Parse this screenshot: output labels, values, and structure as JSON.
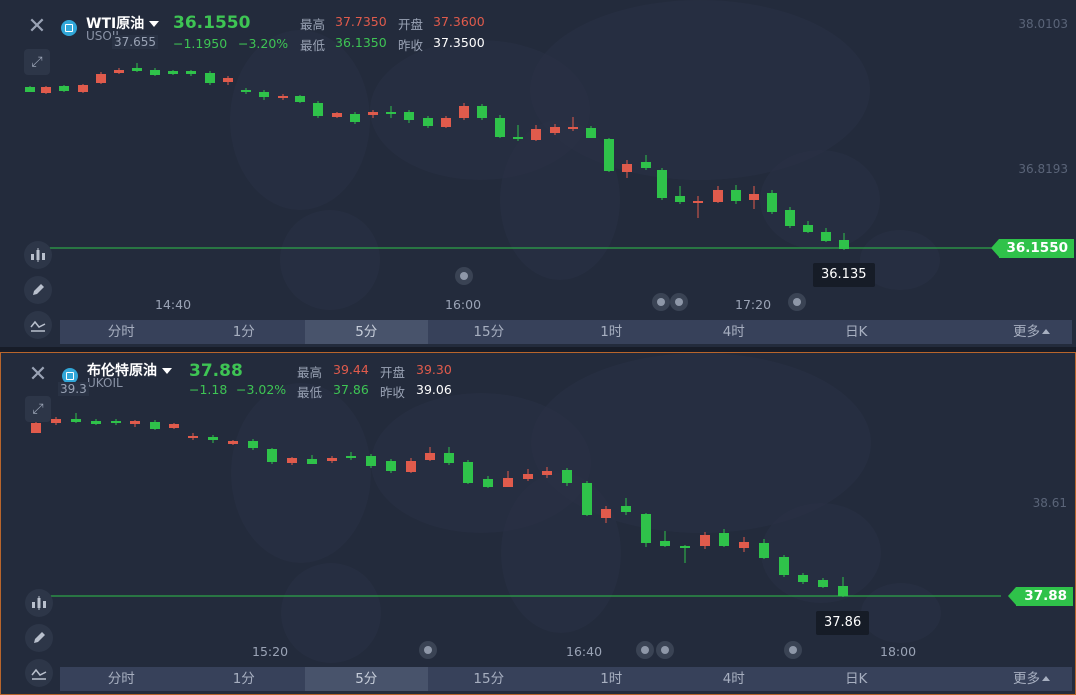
{
  "panels": [
    {
      "symbol_name": "WTI原油",
      "symbol_code": "USOIL",
      "price": "36.1550",
      "change": "−1.1950",
      "change_pct": "−3.20%",
      "high_label": "最高",
      "high": "37.7350",
      "open_label": "开盘",
      "open": "37.3600",
      "low_label": "最低",
      "low": "36.1350",
      "prev_close_label": "昨收",
      "prev_close": "37.3500",
      "axis_labels": [
        "38.0103",
        "36.8193"
      ],
      "peak_label": "37.655",
      "current_tag": "36.1550",
      "low_tag": "36.135",
      "time_labels": [
        "14:40",
        "16:00",
        "17:20"
      ]
    },
    {
      "symbol_name": "布伦特原油",
      "symbol_code": "UKOIL",
      "price": "37.88",
      "change": "−1.18",
      "change_pct": "−3.02%",
      "high_label": "最高",
      "high": "39.44",
      "open_label": "开盘",
      "open": "39.30",
      "low_label": "最低",
      "low": "37.86",
      "prev_close_label": "昨收",
      "prev_close": "39.06",
      "axis_labels": [
        "38.61"
      ],
      "peak_label": "39.3",
      "current_tag": "37.88",
      "low_tag": "37.86",
      "time_labels": [
        "15:20",
        "16:40",
        "18:00"
      ]
    }
  ],
  "tabs": [
    "分时",
    "1分",
    "5分",
    "15分",
    "1时",
    "4时",
    "日K",
    "更多"
  ],
  "active_tab": "5分",
  "colors": {
    "up": "#e05b4c",
    "down": "#2fc24a",
    "background": "#232b3c",
    "tab_bar": "#37415a"
  }
}
